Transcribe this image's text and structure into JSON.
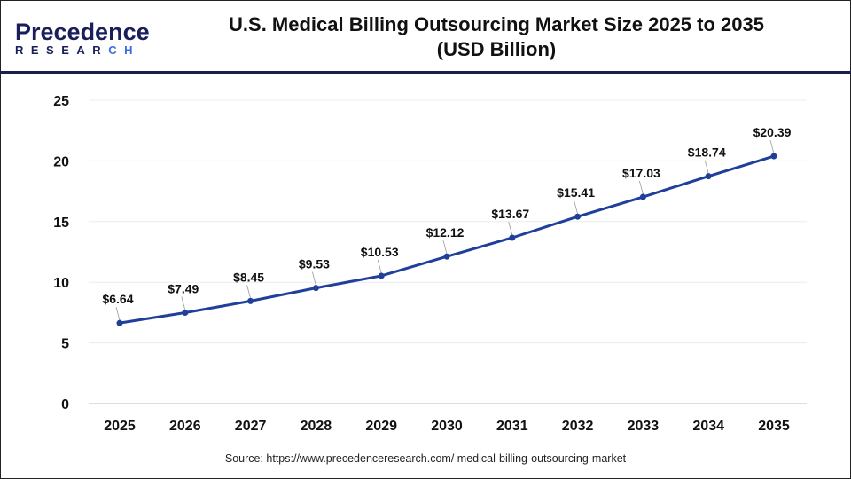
{
  "logo": {
    "line1": "Precedence",
    "line2_a": "RESEAR",
    "line2_b": "CH"
  },
  "title_line1": "U.S. Medical Billing Outsourcing Market Size 2025 to 2035",
  "title_line2": "(USD Billion)",
  "source": "Source: https://www.precedenceresearch.com/ medical-billing-outsourcing-market",
  "colors": {
    "line": "#1f3f9a",
    "header_rule": "#1a1f4d"
  },
  "chart_data": {
    "type": "line",
    "categories": [
      "2025",
      "2026",
      "2027",
      "2028",
      "2029",
      "2030",
      "2031",
      "2032",
      "2033",
      "2034",
      "2035"
    ],
    "values": [
      6.64,
      7.49,
      8.45,
      9.53,
      10.53,
      12.12,
      13.67,
      15.41,
      17.03,
      18.74,
      20.39
    ],
    "data_labels": [
      "$6.64",
      "$7.49",
      "$8.45",
      "$9.53",
      "$10.53",
      "$12.12",
      "$13.67",
      "$15.41",
      "$17.03",
      "$18.74",
      "$20.39"
    ],
    "ylim": [
      0,
      25
    ],
    "yticks": [
      "0",
      "5",
      "10",
      "15",
      "20",
      "25"
    ],
    "grid": true,
    "xlabel": "",
    "ylabel": ""
  }
}
